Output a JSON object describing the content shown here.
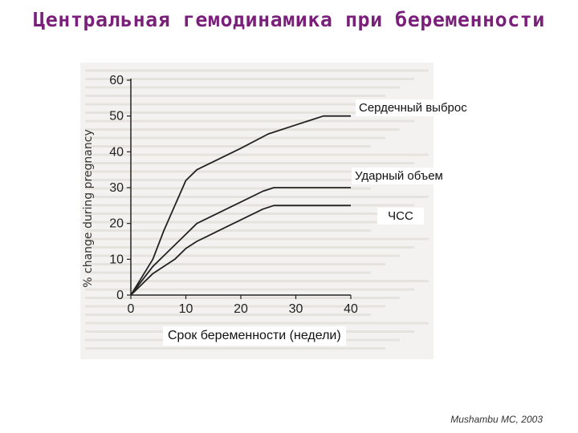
{
  "page": {
    "title": "Центральная гемодинамика при беременности"
  },
  "chart_data": {
    "type": "line",
    "ylabel": "% change during pregnancy",
    "xlabel": "Срок беременности (недели)",
    "xlim": [
      0,
      40
    ],
    "ylim": [
      0,
      60
    ],
    "x_ticks": [
      "0",
      "10",
      "20",
      "30",
      "40"
    ],
    "y_ticks": [
      "0",
      "10",
      "20",
      "30",
      "40",
      "50",
      "60"
    ],
    "grid": false,
    "series": [
      {
        "name": "Сердечный выброс",
        "points": [
          [
            0,
            0
          ],
          [
            2,
            5
          ],
          [
            4,
            10
          ],
          [
            6,
            18
          ],
          [
            8,
            25
          ],
          [
            10,
            32
          ],
          [
            12,
            35
          ],
          [
            16,
            38
          ],
          [
            20,
            41
          ],
          [
            25,
            45
          ],
          [
            30,
            47.5
          ],
          [
            35,
            50
          ],
          [
            40,
            50
          ]
        ]
      },
      {
        "name": "Ударный объем",
        "points": [
          [
            0,
            0
          ],
          [
            2,
            4
          ],
          [
            4,
            8
          ],
          [
            6,
            11
          ],
          [
            8,
            14
          ],
          [
            10,
            17
          ],
          [
            12,
            20
          ],
          [
            16,
            23
          ],
          [
            20,
            26
          ],
          [
            24,
            29
          ],
          [
            26,
            30
          ],
          [
            32,
            30
          ],
          [
            40,
            30
          ]
        ]
      },
      {
        "name": "ЧСС",
        "points": [
          [
            0,
            0
          ],
          [
            2,
            3
          ],
          [
            4,
            6
          ],
          [
            6,
            8
          ],
          [
            8,
            10
          ],
          [
            10,
            13
          ],
          [
            12,
            15
          ],
          [
            16,
            18
          ],
          [
            20,
            21
          ],
          [
            24,
            24
          ],
          [
            26,
            25
          ],
          [
            32,
            25
          ],
          [
            40,
            25
          ]
        ]
      }
    ]
  },
  "source": "Mushambu MC, 2003"
}
